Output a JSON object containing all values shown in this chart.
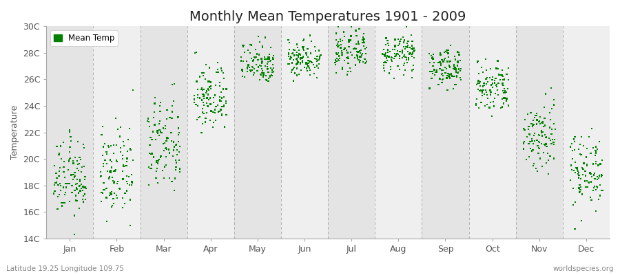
{
  "title": "Monthly Mean Temperatures 1901 - 2009",
  "ylabel": "Temperature",
  "xlabel_bottom_left": "Latitude 19.25 Longitude 109.75",
  "xlabel_bottom_right": "worldspecies.org",
  "legend_label": "Mean Temp",
  "dot_color": "#008000",
  "dot_size": 2.5,
  "ylim": [
    14,
    30
  ],
  "yticks": [
    14,
    16,
    18,
    20,
    22,
    24,
    26,
    28,
    30
  ],
  "ytick_labels": [
    "14C",
    "16C",
    "18C",
    "20C",
    "22C",
    "24C",
    "26C",
    "28C",
    "30C"
  ],
  "months": [
    "Jan",
    "Feb",
    "Mar",
    "Apr",
    "May",
    "Jun",
    "Jul",
    "Aug",
    "Sep",
    "Oct",
    "Nov",
    "Dec"
  ],
  "n_years": 109,
  "start_year": 1901,
  "end_year": 2009,
  "monthly_means": [
    18.5,
    18.9,
    21.0,
    24.6,
    27.3,
    27.6,
    28.1,
    27.9,
    26.9,
    25.3,
    21.8,
    19.2
  ],
  "monthly_stds": [
    1.4,
    1.6,
    1.8,
    1.3,
    0.8,
    0.7,
    0.7,
    0.7,
    0.7,
    1.0,
    1.4,
    1.4
  ],
  "band_color_odd": "#efefef",
  "band_color_even": "#e4e4e4",
  "grid_color": "#888888",
  "title_fontsize": 14,
  "axis_label_fontsize": 9,
  "tick_fontsize": 9,
  "tick_color": "#555555"
}
